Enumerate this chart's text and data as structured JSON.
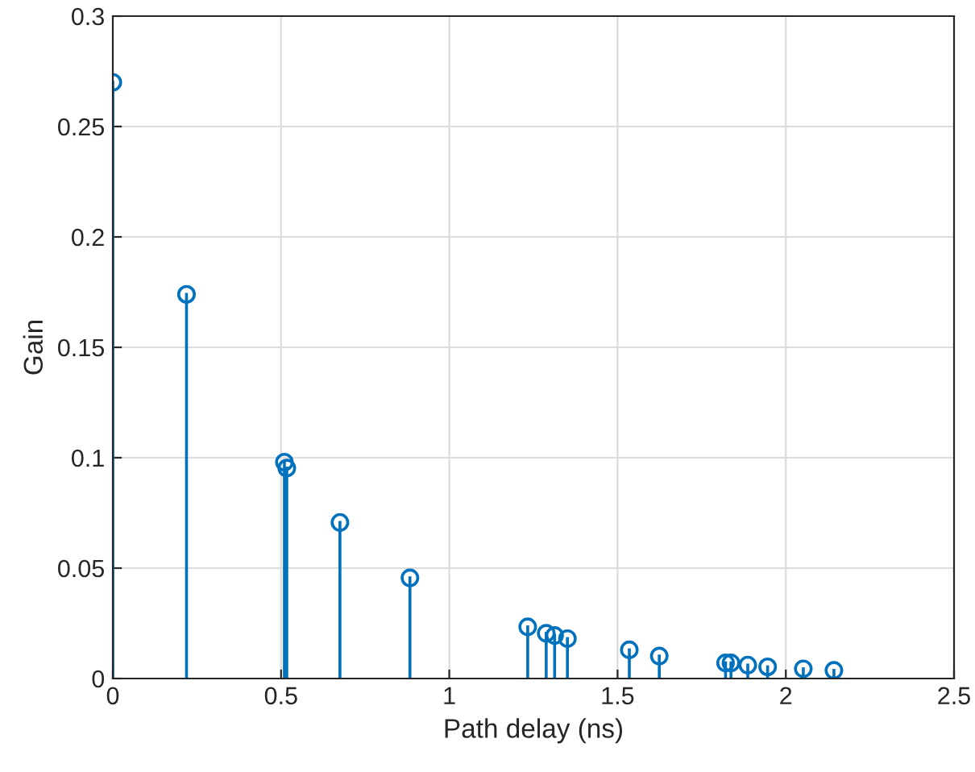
{
  "chart_data": {
    "type": "lollipop",
    "xlabel": "Path delay (ns)",
    "ylabel": "Gain",
    "x": [
      0,
      0.219,
      0.51,
      0.517,
      0.675,
      0.883,
      1.233,
      1.288,
      1.313,
      1.351,
      1.535,
      1.624,
      1.821,
      1.837,
      1.887,
      1.946,
      2.052,
      2.143
    ],
    "series": [
      {
        "color": "#0072bd",
        "values": [
          0.27,
          0.174,
          0.098,
          0.0953,
          0.0707,
          0.0456,
          0.0234,
          0.0205,
          0.0195,
          0.0181,
          0.013,
          0.0102,
          0.0071,
          0.0071,
          0.0061,
          0.0053,
          0.0044,
          0.0037
        ]
      }
    ],
    "xlim": [
      0,
      2.5
    ],
    "ylim": [
      0,
      0.3
    ],
    "xticks": [
      0,
      0.5,
      1,
      1.5,
      2,
      2.5
    ],
    "yticks": [
      0,
      0.05,
      0.1,
      0.15,
      0.2,
      0.25,
      0.3
    ],
    "grid": true,
    "marker": "circle"
  }
}
